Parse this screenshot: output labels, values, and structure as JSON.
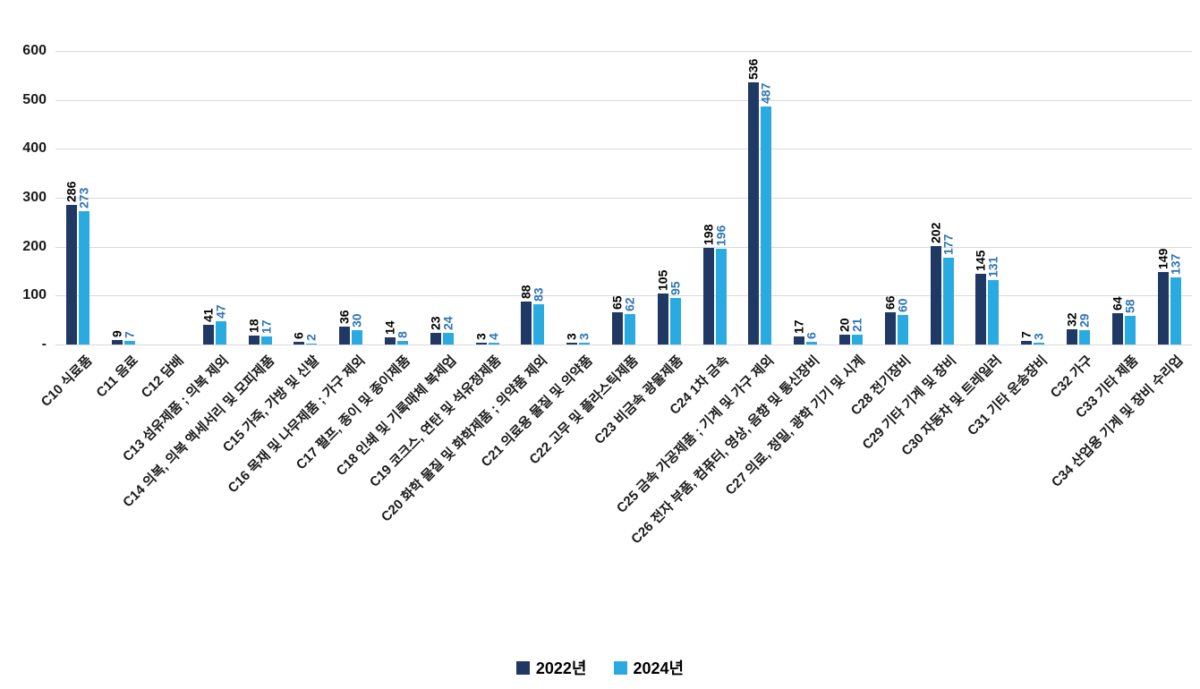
{
  "chart_data": {
    "type": "bar",
    "title": "",
    "categories": [
      "C10 식료품",
      "C11 음료",
      "C12 담배",
      "C13 섬유제품 ; 의복 제외",
      "C14 의복, 의복 액세서리 및 모피제품",
      "C15 가죽, 가방 및 신발",
      "C16 목재 및 나무제품 ; 가구 제외",
      "C17 펄프, 종이 및 종이제품",
      "C18 인쇄 및 기록매체 복제업",
      "C19 코크스, 연탄 및 석유정제품",
      "C20 화학 물질 및 화학제품 ; 의약품 제외",
      "C21 의료용 물질 및 의약품",
      "C22 고무 및 플라스틱제품",
      "C23 비금속 광물제품",
      "C24 1차 금속",
      "C25 금속 가공제품 ; 기계 및 가구 제외",
      "C26 전자 부품, 컴퓨터, 영상, 음향 및 통신장비",
      "C27 의료, 정밀, 광학 기기 및 시계",
      "C28 전기장비",
      "C29 기타 기계 및 장비",
      "C30 자동차 및 트레일러",
      "C31 기타 운송장비",
      "C32 가구",
      "C33 기타 제품",
      "C34 산업용 기계 및 장비 수리업"
    ],
    "series": [
      {
        "name": "2022년",
        "color": "#1F3864",
        "label_color": "#000000",
        "values": [
          286,
          9,
          0,
          41,
          18,
          6,
          36,
          14,
          23,
          3,
          88,
          3,
          65,
          105,
          198,
          536,
          17,
          20,
          66,
          202,
          145,
          7,
          32,
          64,
          149
        ]
      },
      {
        "name": "2024년",
        "color": "#29ABE2",
        "label_color": "#2E75B6",
        "values": [
          273,
          7,
          0,
          47,
          17,
          2,
          30,
          8,
          24,
          4,
          83,
          3,
          62,
          95,
          196,
          487,
          6,
          21,
          60,
          177,
          131,
          3,
          29,
          58,
          137
        ]
      }
    ],
    "ylim": [
      0,
      600
    ],
    "yticks": [
      {
        "value": 0,
        "label": "-"
      },
      {
        "value": 100,
        "label": "100"
      },
      {
        "value": 200,
        "label": "200"
      },
      {
        "value": 300,
        "label": "300"
      },
      {
        "value": 400,
        "label": "400"
      },
      {
        "value": 500,
        "label": "500"
      },
      {
        "value": 600,
        "label": "600"
      }
    ],
    "grid": true,
    "legend_position": "bottom",
    "value_labels_rotated": true,
    "category_labels_rotated_deg": 45,
    "gridline_color": "#D9D9D9",
    "axis_text_color": "#1A1A1A"
  }
}
